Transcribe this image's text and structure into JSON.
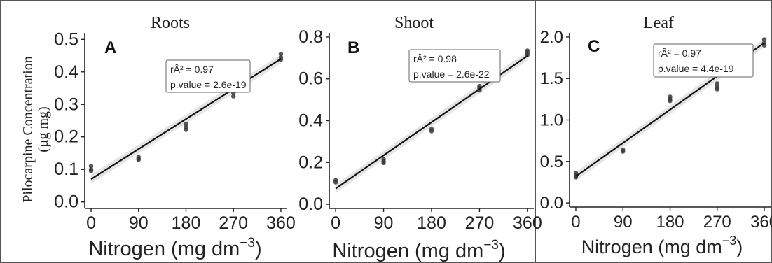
{
  "figure": {
    "ylabel_line1": "Pilocarpine Concentration",
    "ylabel_line2": "(µg mg)"
  },
  "chart_data": [
    {
      "type": "scatter",
      "title": "Roots",
      "panel_letter": "A",
      "xlabel": "Nitrogen (mg dm",
      "xlabel_exponent": "−3",
      "xlabel_close": ")",
      "x_ticks": [
        "0",
        "90",
        "180",
        "270",
        "360"
      ],
      "y_ticks": [
        "0.0",
        "0.1",
        "0.2",
        "0.3",
        "0.4",
        "0.5"
      ],
      "xlim": [
        -12,
        372
      ],
      "ylim": [
        -0.02,
        0.52
      ],
      "stats_line1": "rÂ² =  0.97",
      "stats_line2": "p.value = 2.6e-19",
      "points": [
        {
          "x": 0,
          "y": 0.11
        },
        {
          "x": 0,
          "y": 0.1
        },
        {
          "x": 0,
          "y": 0.095
        },
        {
          "x": 90,
          "y": 0.138
        },
        {
          "x": 90,
          "y": 0.133
        },
        {
          "x": 90,
          "y": 0.13
        },
        {
          "x": 180,
          "y": 0.24
        },
        {
          "x": 180,
          "y": 0.23
        },
        {
          "x": 180,
          "y": 0.222
        },
        {
          "x": 270,
          "y": 0.335
        },
        {
          "x": 270,
          "y": 0.325
        },
        {
          "x": 360,
          "y": 0.455
        },
        {
          "x": 360,
          "y": 0.445
        },
        {
          "x": 360,
          "y": 0.438
        }
      ],
      "fit": [
        [
          0,
          0.07
        ],
        [
          360,
          0.44
        ]
      ]
    },
    {
      "type": "scatter",
      "title": "Shoot",
      "panel_letter": "B",
      "xlabel": "Nitrogen (mg dm",
      "xlabel_exponent": "−3",
      "xlabel_close": ")",
      "x_ticks": [
        "0",
        "90",
        "180",
        "270",
        "360"
      ],
      "y_ticks": [
        "0.0",
        "0.2",
        "0.4",
        "0.6",
        "0.8"
      ],
      "xlim": [
        -12,
        372
      ],
      "ylim": [
        -0.02,
        0.82
      ],
      "stats_line1": "rÂ² =  0.98",
      "stats_line2": "p.value = 2.6e-22",
      "points": [
        {
          "x": 0,
          "y": 0.115
        },
        {
          "x": 0,
          "y": 0.105
        },
        {
          "x": 90,
          "y": 0.215
        },
        {
          "x": 90,
          "y": 0.205
        },
        {
          "x": 90,
          "y": 0.198
        },
        {
          "x": 180,
          "y": 0.36
        },
        {
          "x": 180,
          "y": 0.35
        },
        {
          "x": 270,
          "y": 0.565
        },
        {
          "x": 270,
          "y": 0.555
        },
        {
          "x": 270,
          "y": 0.545
        },
        {
          "x": 360,
          "y": 0.735
        },
        {
          "x": 360,
          "y": 0.725
        },
        {
          "x": 360,
          "y": 0.715
        }
      ],
      "fit": [
        [
          0,
          0.075
        ],
        [
          360,
          0.71
        ]
      ]
    },
    {
      "type": "scatter",
      "title": "Leaf",
      "panel_letter": "C",
      "xlabel": "Nitrogen (mg dm",
      "xlabel_exponent": "−3",
      "xlabel_close": ")",
      "x_ticks": [
        "0",
        "90",
        "180",
        "270",
        "360"
      ],
      "y_ticks": [
        "0.0",
        "0.5",
        "1.0",
        "1.5",
        "2.0"
      ],
      "xlim": [
        -12,
        372
      ],
      "ylim": [
        -0.05,
        2.05
      ],
      "stats_line1": "rÂ² =  0.97",
      "stats_line2": "p.value = 4.4e-19",
      "points": [
        {
          "x": 0,
          "y": 0.36
        },
        {
          "x": 0,
          "y": 0.33
        },
        {
          "x": 0,
          "y": 0.31
        },
        {
          "x": 90,
          "y": 0.64
        },
        {
          "x": 90,
          "y": 0.62
        },
        {
          "x": 180,
          "y": 1.28
        },
        {
          "x": 180,
          "y": 1.25
        },
        {
          "x": 180,
          "y": 1.23
        },
        {
          "x": 270,
          "y": 1.44
        },
        {
          "x": 270,
          "y": 1.4
        },
        {
          "x": 270,
          "y": 1.37
        },
        {
          "x": 360,
          "y": 1.97
        },
        {
          "x": 360,
          "y": 1.93
        },
        {
          "x": 360,
          "y": 1.9
        }
      ],
      "fit": [
        [
          0,
          0.32
        ],
        [
          360,
          1.93
        ]
      ]
    }
  ]
}
